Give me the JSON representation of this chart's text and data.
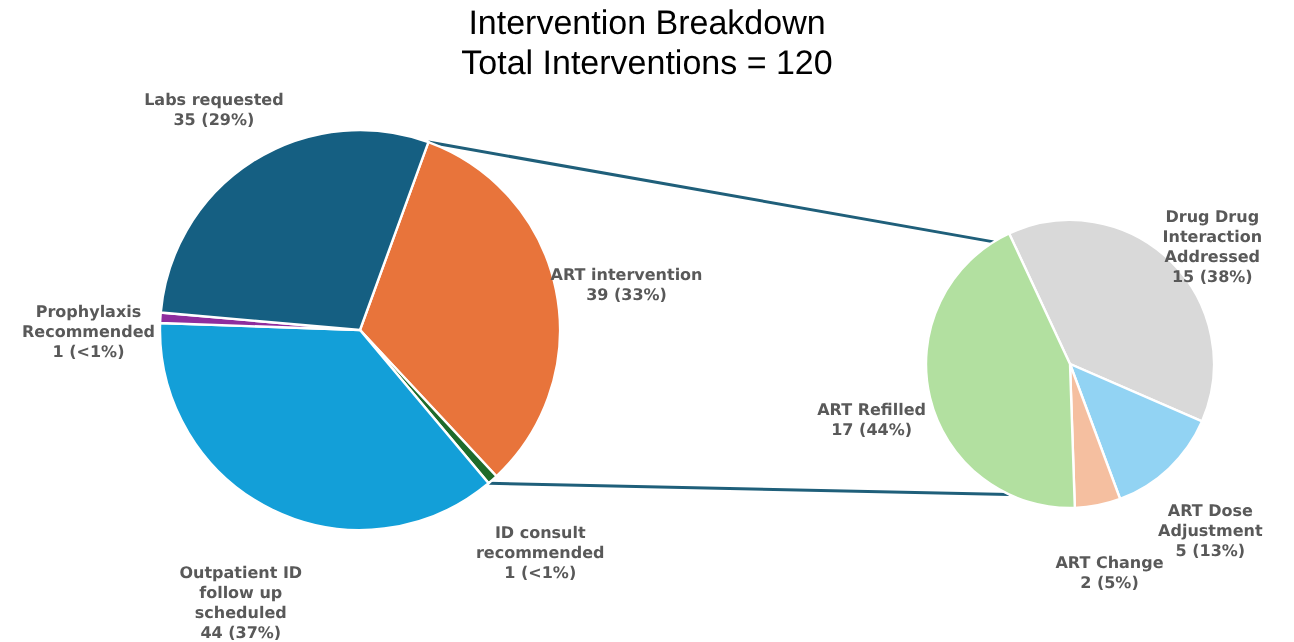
{
  "chart_data": [
    {
      "type": "pie",
      "title": "Intervention Breakdown",
      "subtitle": "Total Interventions = 120",
      "categories": [
        "ART intervention",
        "ID consult recommended",
        "Outpatient ID follow up scheduled",
        "Prophylaxis Recommended",
        "Labs requested"
      ],
      "values": [
        39,
        1,
        44,
        1,
        35
      ],
      "value_labels": [
        "39 (33%)",
        "1 (<1%)",
        "44 (37%)",
        "1 (<1%)",
        "35 (29%)"
      ],
      "colors": [
        "#e8743b",
        "#1e6b2a",
        "#139fd8",
        "#8e2d9e",
        "#155f82"
      ]
    },
    {
      "type": "pie",
      "categories": [
        "Drug Drug Interaction Addressed",
        "ART Dose Adjustment",
        "ART Change",
        "ART Refilled"
      ],
      "values": [
        15,
        5,
        2,
        17
      ],
      "value_labels": [
        "15 (38%)",
        "5 (13%)",
        "2 (5%)",
        "17 (44%)"
      ],
      "colors": [
        "#d9d9d9",
        "#92d3f3",
        "#f5bfa0",
        "#b2e0a0"
      ]
    }
  ]
}
